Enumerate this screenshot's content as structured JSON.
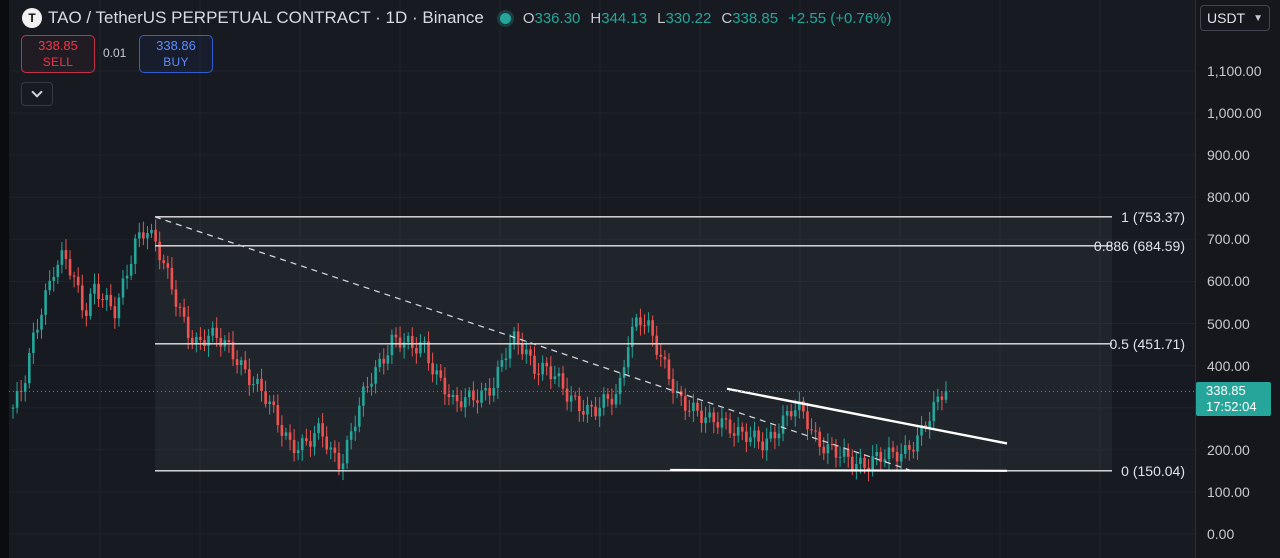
{
  "header": {
    "logo_letter": "T",
    "title": "TAO / TetherUS PERPETUAL CONTRACT · 1D · Binance",
    "ohlc": {
      "open_label": "O",
      "open": "336.30",
      "high_label": "H",
      "high": "344.13",
      "low_label": "L",
      "low": "330.22",
      "close_label": "C",
      "close": "338.85",
      "change": "+2.55 (+0.76%)"
    },
    "colors": {
      "up": "#26a69a",
      "down": "#ef5350"
    }
  },
  "trade_panel": {
    "sell_price": "338.85",
    "sell_label": "SELL",
    "spread": "0.01",
    "buy_price": "338.86",
    "buy_label": "BUY",
    "collapse_icon": "chevron-down-icon"
  },
  "currency_select": {
    "value": "USDT"
  },
  "price_tag": {
    "price": "338.85",
    "countdown": "17:52:04"
  },
  "chart_data": {
    "type": "candlestick",
    "y_axis": {
      "ticks": [
        "0.00",
        "100.00",
        "200.00",
        "300.00",
        "400.00",
        "500.00",
        "600.00",
        "700.00",
        "800.00",
        "900.00",
        "1,000.00",
        "1,100.00"
      ],
      "tick_values": [
        0,
        100,
        200,
        300,
        400,
        500,
        600,
        700,
        800,
        900,
        1000,
        1100
      ],
      "range": [
        0,
        1130
      ]
    },
    "grid": true,
    "fib_levels": [
      {
        "ratio": 1,
        "price": 753.37,
        "label": "1 (753.37)"
      },
      {
        "ratio": 0.886,
        "price": 684.59,
        "label": "0.886 (684.59)"
      },
      {
        "ratio": 0.5,
        "price": 451.71,
        "label": "0.5 (451.71)"
      },
      {
        "ratio": 0,
        "price": 150.04,
        "label": "0 (150.04)"
      }
    ],
    "trendlines": [
      {
        "style": "dashed",
        "from_price": 753.37,
        "to_price": 150.04
      },
      {
        "style": "solid",
        "from_price": 345,
        "to_price": 215
      },
      {
        "style": "solid",
        "from_price": 152,
        "to_price": 150.04
      }
    ],
    "price_path": [
      300,
      340,
      460,
      560,
      640,
      660,
      590,
      520,
      600,
      560,
      520,
      600,
      700,
      740,
      690,
      610,
      540,
      490,
      460,
      470,
      455,
      440,
      420,
      380,
      340,
      300,
      260,
      225,
      210,
      215,
      240,
      200,
      175,
      240,
      310,
      370,
      420,
      470,
      455,
      430,
      450,
      400,
      360,
      300,
      310,
      330,
      345,
      360,
      420,
      460,
      440,
      400,
      390,
      360,
      330,
      320,
      300,
      290,
      310,
      330,
      470,
      520,
      480,
      420,
      380,
      330,
      300,
      270,
      265,
      280,
      260,
      230,
      220,
      215,
      240,
      270,
      290,
      285,
      240,
      220,
      200,
      175,
      160,
      170,
      190,
      185,
      175,
      190,
      230,
      270,
      300,
      339
    ],
    "last_price": 338.85
  }
}
